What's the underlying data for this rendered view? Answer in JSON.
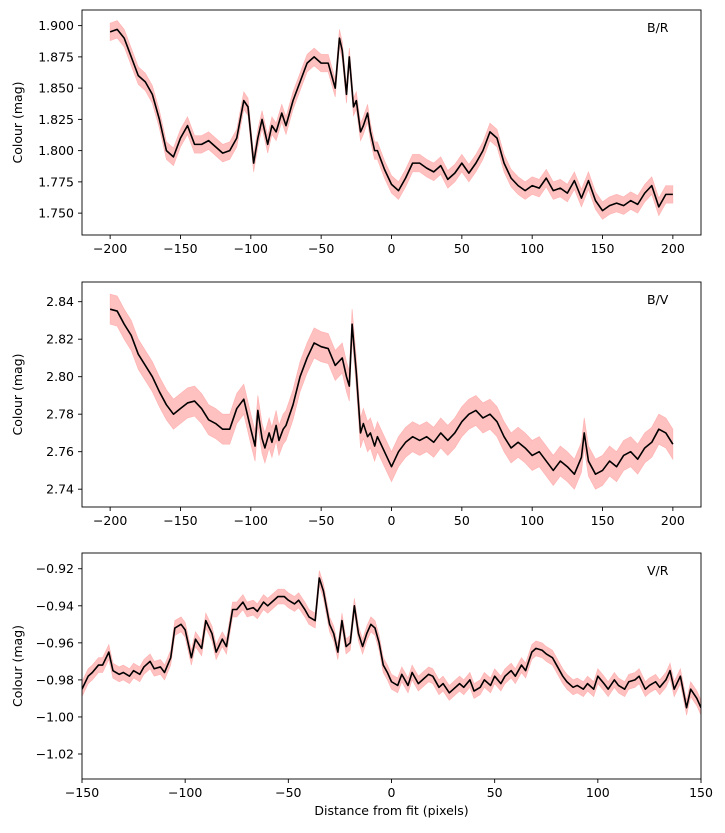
{
  "chart_data": [
    {
      "type": "line",
      "label": "B/R",
      "ylabel": "Colour (mag)",
      "xlabel": "",
      "xlim": [
        -220,
        220
      ],
      "ylim": [
        1.7325,
        1.9125
      ],
      "xticks": [
        -200,
        -150,
        -100,
        -50,
        0,
        50,
        100,
        150,
        200
      ],
      "xtick_labels": [
        "−200",
        "−150",
        "−100",
        "−50",
        "0",
        "50",
        "100",
        "150",
        "200"
      ],
      "yticks": [
        1.75,
        1.775,
        1.8,
        1.825,
        1.85,
        1.875,
        1.9
      ],
      "ytick_labels": [
        "1.750",
        "1.775",
        "1.800",
        "1.825",
        "1.850",
        "1.875",
        "1.900"
      ],
      "band_halfwidth": 0.007,
      "series": [
        {
          "x": [
            -200,
            -195,
            -190,
            -185,
            -180,
            -175,
            -170,
            -165,
            -160,
            -155,
            -150,
            -145,
            -140,
            -135,
            -130,
            -125,
            -120,
            -115,
            -110,
            -105,
            -102,
            -98,
            -95,
            -92,
            -88,
            -85,
            -82,
            -78,
            -75,
            -70,
            -65,
            -60,
            -55,
            -50,
            -45,
            -40,
            -37,
            -35,
            -32,
            -30,
            -27,
            -25,
            -22,
            -20,
            -17,
            -15,
            -12,
            -10,
            -5,
            0,
            5,
            10,
            15,
            20,
            25,
            30,
            35,
            40,
            45,
            50,
            55,
            60,
            65,
            70,
            75,
            80,
            85,
            90,
            95,
            100,
            105,
            110,
            115,
            120,
            125,
            130,
            135,
            140,
            145,
            150,
            155,
            160,
            165,
            170,
            175,
            180,
            185,
            190,
            195,
            200
          ],
          "y": [
            1.895,
            1.897,
            1.89,
            1.875,
            1.86,
            1.855,
            1.845,
            1.825,
            1.8,
            1.795,
            1.81,
            1.82,
            1.805,
            1.805,
            1.808,
            1.803,
            1.798,
            1.8,
            1.81,
            1.84,
            1.835,
            1.79,
            1.81,
            1.825,
            1.805,
            1.82,
            1.815,
            1.83,
            1.82,
            1.84,
            1.855,
            1.87,
            1.875,
            1.87,
            1.87,
            1.85,
            1.89,
            1.88,
            1.845,
            1.875,
            1.835,
            1.84,
            1.815,
            1.82,
            1.83,
            1.815,
            1.8,
            1.8,
            1.785,
            1.773,
            1.768,
            1.778,
            1.79,
            1.79,
            1.786,
            1.783,
            1.788,
            1.777,
            1.782,
            1.79,
            1.782,
            1.79,
            1.8,
            1.815,
            1.81,
            1.79,
            1.778,
            1.772,
            1.768,
            1.772,
            1.77,
            1.778,
            1.768,
            1.77,
            1.766,
            1.776,
            1.762,
            1.776,
            1.76,
            1.752,
            1.756,
            1.758,
            1.756,
            1.76,
            1.757,
            1.766,
            1.772,
            1.755,
            1.765,
            1.765
          ]
        }
      ]
    },
    {
      "type": "line",
      "label": "B/V",
      "ylabel": "Colour (mag)",
      "xlabel": "",
      "xlim": [
        -220,
        220
      ],
      "ylim": [
        2.7305,
        2.8505
      ],
      "xticks": [
        -200,
        -150,
        -100,
        -50,
        0,
        50,
        100,
        150,
        200
      ],
      "xtick_labels": [
        "−200",
        "−150",
        "−100",
        "−50",
        "0",
        "50",
        "100",
        "150",
        "200"
      ],
      "yticks": [
        2.74,
        2.76,
        2.78,
        2.8,
        2.82,
        2.84
      ],
      "ytick_labels": [
        "2.74",
        "2.76",
        "2.78",
        "2.80",
        "2.82",
        "2.84"
      ],
      "band_halfwidth": 0.008,
      "series": [
        {
          "x": [
            -200,
            -195,
            -190,
            -185,
            -180,
            -175,
            -170,
            -165,
            -160,
            -155,
            -150,
            -145,
            -140,
            -135,
            -130,
            -125,
            -120,
            -115,
            -110,
            -105,
            -100,
            -97,
            -95,
            -92,
            -90,
            -87,
            -85,
            -82,
            -80,
            -77,
            -75,
            -70,
            -65,
            -60,
            -55,
            -50,
            -45,
            -40,
            -35,
            -32,
            -30,
            -28,
            -25,
            -22,
            -20,
            -17,
            -15,
            -12,
            -10,
            -5,
            0,
            5,
            10,
            15,
            20,
            25,
            30,
            35,
            40,
            45,
            50,
            55,
            60,
            65,
            70,
            75,
            80,
            85,
            90,
            95,
            100,
            105,
            110,
            115,
            120,
            125,
            130,
            135,
            137,
            140,
            145,
            150,
            155,
            160,
            165,
            170,
            175,
            180,
            185,
            190,
            195,
            200
          ],
          "y": [
            2.836,
            2.835,
            2.828,
            2.822,
            2.812,
            2.806,
            2.8,
            2.792,
            2.785,
            2.78,
            2.783,
            2.786,
            2.787,
            2.783,
            2.777,
            2.775,
            2.772,
            2.772,
            2.783,
            2.788,
            2.772,
            2.763,
            2.782,
            2.767,
            2.762,
            2.77,
            2.765,
            2.774,
            2.766,
            2.772,
            2.774,
            2.785,
            2.8,
            2.81,
            2.818,
            2.816,
            2.815,
            2.806,
            2.81,
            2.8,
            2.795,
            2.828,
            2.802,
            2.77,
            2.775,
            2.768,
            2.77,
            2.763,
            2.768,
            2.76,
            2.752,
            2.76,
            2.765,
            2.768,
            2.766,
            2.768,
            2.765,
            2.77,
            2.766,
            2.77,
            2.776,
            2.78,
            2.782,
            2.778,
            2.78,
            2.776,
            2.768,
            2.762,
            2.765,
            2.762,
            2.758,
            2.76,
            2.755,
            2.75,
            2.755,
            2.752,
            2.748,
            2.757,
            2.77,
            2.755,
            2.748,
            2.75,
            2.755,
            2.752,
            2.758,
            2.76,
            2.756,
            2.762,
            2.765,
            2.772,
            2.77,
            2.764
          ]
        }
      ]
    },
    {
      "type": "line",
      "label": "V/R",
      "ylabel": "Colour (mag)",
      "xlabel": "Distance from fit (pixels)",
      "xlim": [
        -150,
        150
      ],
      "ylim": [
        -1.0335,
        -0.9115
      ],
      "xticks": [
        -150,
        -100,
        -50,
        0,
        50,
        100,
        150
      ],
      "xtick_labels": [
        "−150",
        "−100",
        "−50",
        "0",
        "50",
        "100",
        "150"
      ],
      "yticks": [
        -1.02,
        -1.0,
        -0.98,
        -0.96,
        -0.94,
        -0.92
      ],
      "ytick_labels": [
        "−1.02",
        "−1.00",
        "−0.98",
        "−0.96",
        "−0.94",
        "−0.92"
      ],
      "band_halfwidth": 0.004,
      "series": [
        {
          "x": [
            -150,
            -147,
            -145,
            -142,
            -140,
            -137,
            -135,
            -132,
            -130,
            -127,
            -125,
            -122,
            -120,
            -117,
            -115,
            -112,
            -110,
            -107,
            -105,
            -102,
            -100,
            -97,
            -95,
            -92,
            -90,
            -87,
            -85,
            -82,
            -80,
            -77,
            -75,
            -72,
            -70,
            -67,
            -65,
            -62,
            -60,
            -57,
            -55,
            -52,
            -50,
            -47,
            -45,
            -42,
            -40,
            -37,
            -35,
            -33,
            -30,
            -28,
            -26,
            -24,
            -22,
            -20,
            -18,
            -16,
            -14,
            -12,
            -10,
            -8,
            -6,
            -4,
            -2,
            0,
            3,
            5,
            8,
            10,
            13,
            15,
            18,
            20,
            23,
            25,
            28,
            30,
            33,
            35,
            38,
            40,
            43,
            45,
            48,
            50,
            53,
            55,
            58,
            60,
            63,
            65,
            68,
            70,
            73,
            75,
            78,
            80,
            83,
            85,
            88,
            90,
            93,
            95,
            98,
            100,
            103,
            105,
            108,
            110,
            113,
            115,
            118,
            120,
            123,
            125,
            128,
            130,
            133,
            135,
            137,
            140,
            143,
            145,
            148,
            150
          ],
          "y": [
            -0.985,
            -0.978,
            -0.976,
            -0.972,
            -0.972,
            -0.965,
            -0.975,
            -0.977,
            -0.976,
            -0.978,
            -0.975,
            -0.977,
            -0.973,
            -0.97,
            -0.974,
            -0.973,
            -0.976,
            -0.968,
            -0.952,
            -0.95,
            -0.953,
            -0.968,
            -0.958,
            -0.963,
            -0.948,
            -0.955,
            -0.965,
            -0.958,
            -0.962,
            -0.942,
            -0.942,
            -0.938,
            -0.942,
            -0.941,
            -0.943,
            -0.938,
            -0.94,
            -0.937,
            -0.935,
            -0.935,
            -0.937,
            -0.939,
            -0.937,
            -0.942,
            -0.946,
            -0.948,
            -0.925,
            -0.932,
            -0.95,
            -0.955,
            -0.965,
            -0.948,
            -0.962,
            -0.96,
            -0.94,
            -0.955,
            -0.962,
            -0.955,
            -0.95,
            -0.952,
            -0.96,
            -0.972,
            -0.976,
            -0.981,
            -0.983,
            -0.977,
            -0.983,
            -0.976,
            -0.982,
            -0.98,
            -0.977,
            -0.978,
            -0.984,
            -0.982,
            -0.987,
            -0.985,
            -0.982,
            -0.984,
            -0.98,
            -0.986,
            -0.984,
            -0.98,
            -0.983,
            -0.978,
            -0.982,
            -0.978,
            -0.975,
            -0.978,
            -0.972,
            -0.975,
            -0.965,
            -0.963,
            -0.964,
            -0.966,
            -0.968,
            -0.972,
            -0.978,
            -0.981,
            -0.984,
            -0.983,
            -0.985,
            -0.982,
            -0.985,
            -0.978,
            -0.982,
            -0.985,
            -0.98,
            -0.983,
            -0.985,
            -0.981,
            -0.98,
            -0.978,
            -0.985,
            -0.983,
            -0.981,
            -0.984,
            -0.98,
            -0.975,
            -0.985,
            -0.978,
            -0.995,
            -0.985,
            -0.99,
            -0.995
          ]
        }
      ]
    }
  ]
}
